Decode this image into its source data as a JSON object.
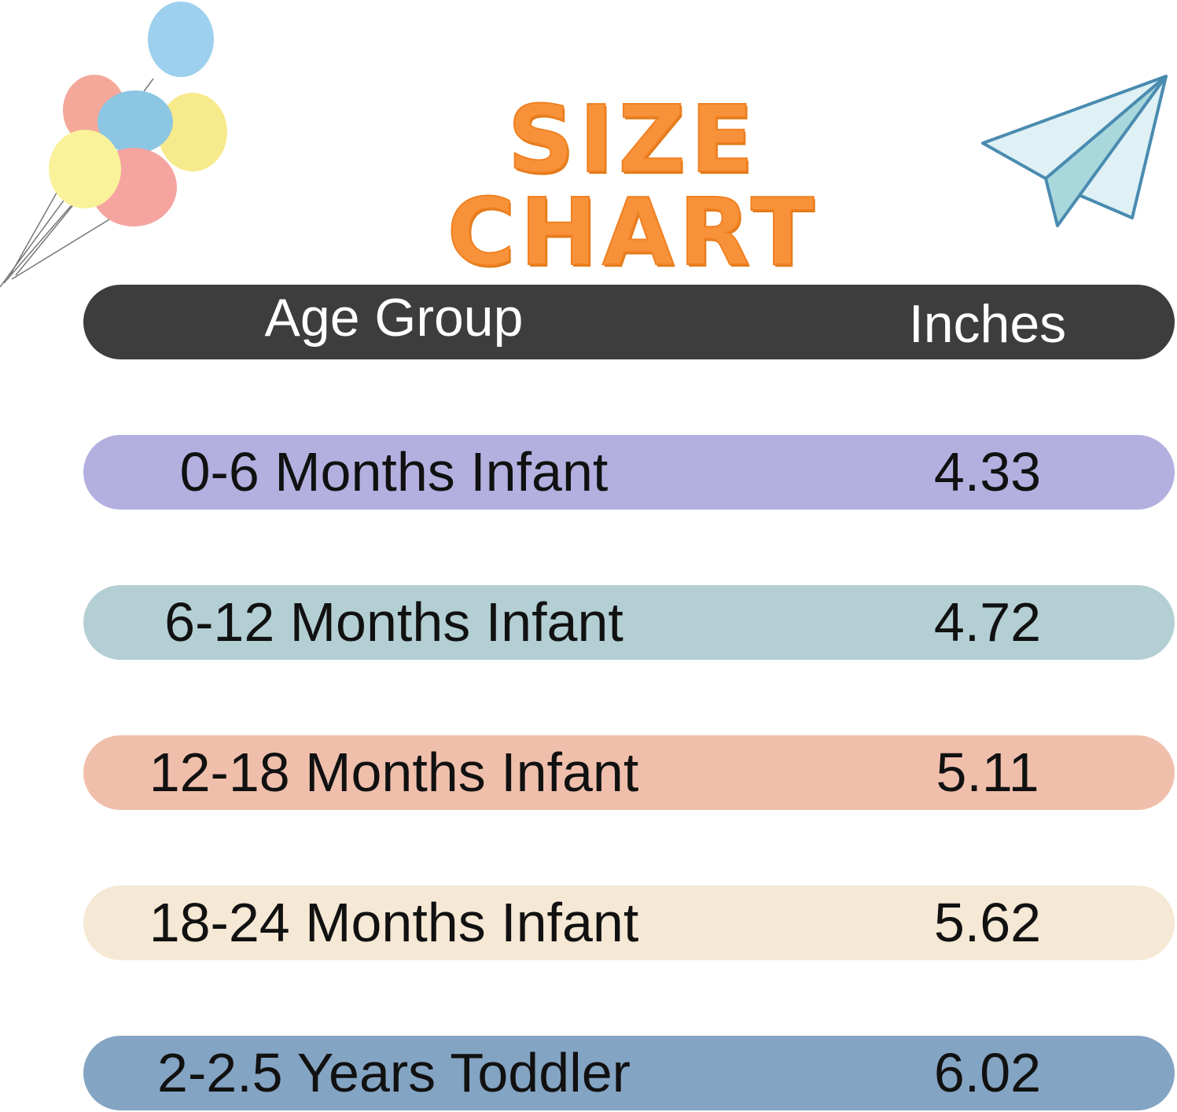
{
  "title": "SIZE CHART",
  "table": {
    "headers": {
      "age_group": "Age Group",
      "inches": "Inches"
    },
    "rows": [
      {
        "age_group": "0-6 Months Infant",
        "inches": "4.33",
        "color": "#b3b0e0"
      },
      {
        "age_group": "6-12 Months Infant",
        "inches": "4.72",
        "color": "#b3cfd4"
      },
      {
        "age_group": "12-18 Months Infant",
        "inches": "5.11",
        "color": "#f0bfab"
      },
      {
        "age_group": "18-24 Months Infant",
        "inches": "5.62",
        "color": "#f5e8d4"
      },
      {
        "age_group": "2-2.5 Years Toddler",
        "inches": "6.02",
        "color": "#84a4c3"
      }
    ]
  },
  "colors": {
    "title": "#f7923a",
    "header": "#3d3d3d"
  },
  "decorations": [
    "balloons-icon",
    "paper-plane-icon"
  ]
}
